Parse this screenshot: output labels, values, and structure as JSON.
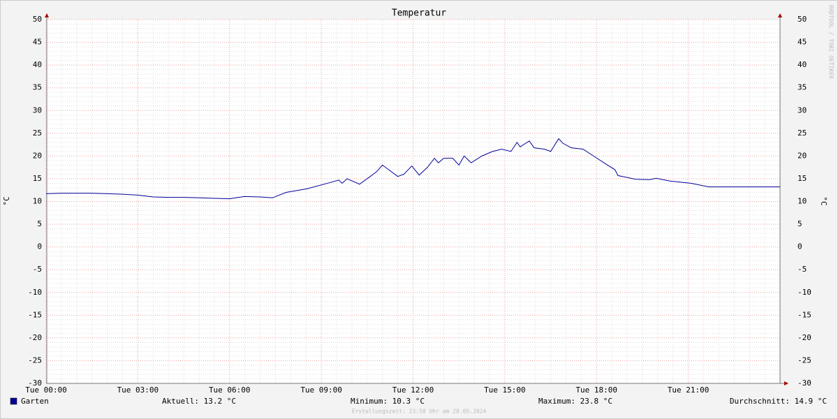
{
  "chart_data": {
    "type": "line",
    "title": "Temperatur",
    "y_label": "°C",
    "x": [
      0,
      0.5,
      1,
      1.5,
      2,
      2.5,
      3,
      3.5,
      4,
      4.5,
      5,
      5.5,
      6,
      6.48,
      7,
      7.4,
      7.85,
      8.54,
      9.2,
      9.57,
      9.68,
      9.84,
      10.25,
      10.6,
      10.8,
      11.0,
      11.16,
      11.5,
      11.7,
      11.96,
      12.2,
      12.47,
      12.7,
      12.83,
      13.0,
      13.3,
      13.5,
      13.67,
      13.9,
      14.25,
      14.6,
      14.9,
      15.2,
      15.4,
      15.5,
      15.8,
      15.96,
      16.3,
      16.5,
      16.76,
      16.9,
      17.17,
      17.56,
      17.9,
      18.36,
      18.6,
      18.7,
      19.27,
      19.73,
      19.95,
      20.4,
      21.1,
      21.67,
      24
    ],
    "series": [
      {
        "name": "Garten",
        "color": "#000099",
        "values": [
          11.7,
          11.8,
          11.8,
          11.8,
          11.7,
          11.6,
          11.4,
          11.0,
          10.9,
          10.9,
          10.8,
          10.7,
          10.6,
          11.1,
          11.0,
          10.8,
          12.0,
          12.8,
          14.0,
          14.7,
          14.0,
          15.0,
          13.8,
          15.5,
          16.5,
          18.0,
          17.2,
          15.5,
          16.0,
          17.8,
          15.8,
          17.5,
          19.5,
          18.5,
          19.5,
          19.5,
          18.0,
          20.0,
          18.5,
          20.0,
          21.0,
          21.5,
          21.0,
          23.0,
          22.0,
          23.3,
          21.8,
          21.5,
          21.0,
          23.8,
          22.8,
          21.8,
          21.5,
          20.0,
          18.0,
          17.0,
          15.7,
          14.9,
          14.8,
          15.1,
          14.5,
          14.0,
          13.2,
          13.2
        ]
      }
    ],
    "xlim": [
      0,
      24
    ],
    "xticks": [
      {
        "value": 0,
        "label": "Tue 00:00"
      },
      {
        "value": 3,
        "label": "Tue 03:00"
      },
      {
        "value": 6,
        "label": "Tue 06:00"
      },
      {
        "value": 9,
        "label": "Tue 09:00"
      },
      {
        "value": 12,
        "label": "Tue 12:00"
      },
      {
        "value": 15,
        "label": "Tue 15:00"
      },
      {
        "value": 18,
        "label": "Tue 18:00"
      },
      {
        "value": 21,
        "label": "Tue 21:00"
      }
    ],
    "ylim": [
      -30,
      50
    ],
    "yticks": [
      -30,
      -25,
      -20,
      -15,
      -10,
      -5,
      0,
      5,
      10,
      15,
      20,
      25,
      30,
      35,
      40,
      45,
      50
    ],
    "grid": true,
    "stats": [
      "Aktuell: 13.2 °C",
      "Minimum: 10.3 °C",
      "Maximum: 23.8 °C",
      "Durchschnitt: 14.9 °C"
    ],
    "footer": "Erstellungszeit: 23:58 Uhr am 28.05.2024",
    "watermark": "RRDTOOL / TOBI OETIKER"
  }
}
